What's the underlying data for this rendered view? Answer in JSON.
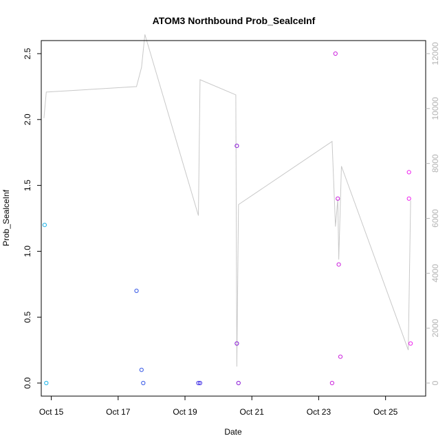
{
  "chart_data": {
    "type": "scatter",
    "title": "ATOM3 Northbound Prob_SealceInf",
    "xlabel": "Date",
    "ylabel": "Prob_SealceInf",
    "ylim": [
      0,
      2.5
    ],
    "y2lim": [
      0,
      12000
    ],
    "xlim_days": [
      14.7,
      26.2
    ],
    "x_ticks": [
      {
        "label": "Oct 15",
        "day": 15
      },
      {
        "label": "Oct 17",
        "day": 17
      },
      {
        "label": "Oct 19",
        "day": 19
      },
      {
        "label": "Oct 21",
        "day": 21
      },
      {
        "label": "Oct 23",
        "day": 23
      },
      {
        "label": "Oct 25",
        "day": 25
      }
    ],
    "y_ticks": [
      "0.0",
      "0.5",
      "1.0",
      "1.5",
      "2.0",
      "2.5"
    ],
    "y2_ticks": [
      "0",
      "2000",
      "4000",
      "6000",
      "8000",
      "10000",
      "12000"
    ],
    "points": [
      {
        "day": 14.8,
        "y": 1.2,
        "color": "#19b2e6"
      },
      {
        "day": 14.85,
        "y": 0.0,
        "color": "#19b2e6"
      },
      {
        "day": 17.55,
        "y": 0.7,
        "color": "#3355e6"
      },
      {
        "day": 17.7,
        "y": 0.1,
        "color": "#3355e6"
      },
      {
        "day": 17.75,
        "y": 0.0,
        "color": "#3355e6"
      },
      {
        "day": 19.4,
        "y": 0.0,
        "color": "#4433e6"
      },
      {
        "day": 19.45,
        "y": 0.0,
        "color": "#4433e6"
      },
      {
        "day": 20.55,
        "y": 1.8,
        "color": "#8a19d6"
      },
      {
        "day": 20.55,
        "y": 0.3,
        "color": "#8a19d6"
      },
      {
        "day": 20.6,
        "y": 0.0,
        "color": "#8a19d6"
      },
      {
        "day": 23.4,
        "y": 0.0,
        "color": "#cc22dd"
      },
      {
        "day": 23.5,
        "y": 2.5,
        "color": "#cc22dd"
      },
      {
        "day": 23.57,
        "y": 1.4,
        "color": "#cc22dd"
      },
      {
        "day": 23.6,
        "y": 0.9,
        "color": "#cc22dd"
      },
      {
        "day": 23.65,
        "y": 0.2,
        "color": "#cc22dd"
      },
      {
        "day": 25.7,
        "y": 1.6,
        "color": "#ee22ee"
      },
      {
        "day": 25.7,
        "y": 1.4,
        "color": "#ee22ee"
      },
      {
        "day": 25.75,
        "y": 0.3,
        "color": "#ee22ee"
      }
    ],
    "secondary_line": {
      "color": "#c8c8c8",
      "points": [
        [
          14.78,
          9650
        ],
        [
          14.85,
          10600
        ],
        [
          17.55,
          10800
        ],
        [
          17.7,
          11500
        ],
        [
          17.8,
          12700
        ],
        [
          19.4,
          6100
        ],
        [
          19.45,
          11050
        ],
        [
          20.52,
          10500
        ],
        [
          20.55,
          600
        ],
        [
          20.6,
          6500
        ],
        [
          23.4,
          8800
        ],
        [
          23.5,
          5700
        ],
        [
          23.57,
          6700
        ],
        [
          23.6,
          4500
        ],
        [
          23.68,
          7900
        ],
        [
          25.68,
          1200
        ],
        [
          25.75,
          6650
        ]
      ]
    }
  }
}
